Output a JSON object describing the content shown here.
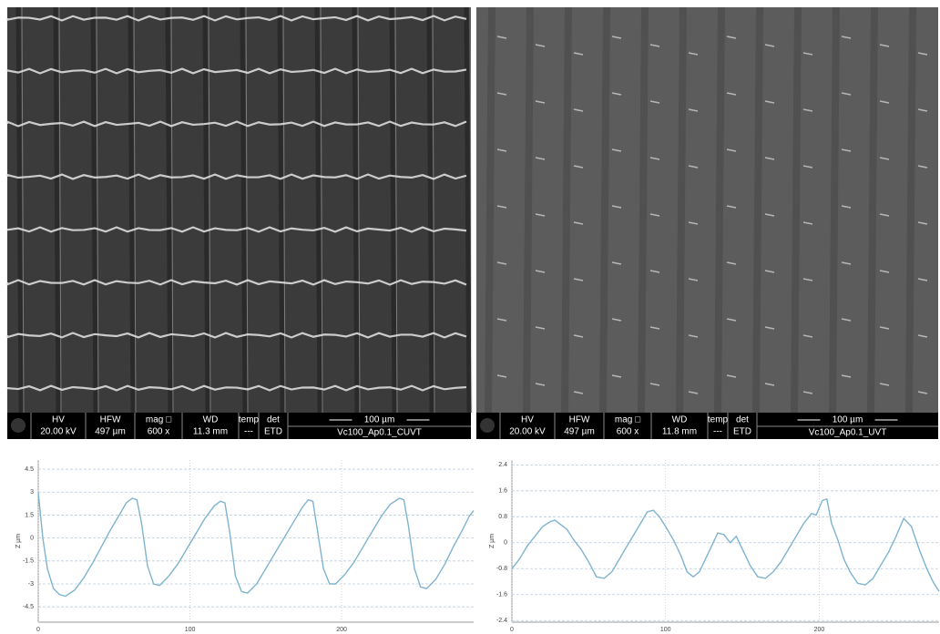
{
  "sem_panels": [
    {
      "headers": [
        "HV",
        "HFW",
        "mag □",
        "WD",
        "temp",
        "det"
      ],
      "values": [
        "20.00 kV",
        "497 µm",
        "600 x",
        "11.3 mm",
        "---",
        "ETD"
      ],
      "scale": "100 µm",
      "name": "Vc100_Ap0.1_CUVT"
    },
    {
      "headers": [
        "HV",
        "HFW",
        "mag □",
        "WD",
        "temp",
        "det"
      ],
      "values": [
        "20.00 kV",
        "497 µm",
        "600 x",
        "11.8 mm",
        "---",
        "ETD"
      ],
      "scale": "100 µm",
      "name": "Vc100_Ap0.1_UVT"
    }
  ],
  "chart_data": [
    {
      "type": "line",
      "y_label": "Z µm",
      "color": "#7fb3d0",
      "grid": true,
      "xlim": [
        0,
        287
      ],
      "xticks": [
        0,
        100,
        200
      ],
      "ylim": [
        -5.5,
        5.1
      ],
      "yticks": [
        4.5,
        3,
        1.5,
        0,
        -1.5,
        -3,
        -4.5
      ],
      "x": [
        0,
        3,
        6,
        10,
        14,
        18,
        24,
        30,
        36,
        42,
        48,
        54,
        58,
        62,
        65,
        68,
        72,
        76,
        80,
        86,
        92,
        98,
        104,
        110,
        116,
        120,
        123,
        126,
        130,
        134,
        138,
        144,
        150,
        156,
        162,
        168,
        174,
        178,
        181,
        184,
        188,
        192,
        196,
        202,
        208,
        214,
        220,
        226,
        232,
        238,
        241,
        244,
        248,
        252,
        256,
        262,
        268,
        274,
        280,
        284,
        287
      ],
      "values": [
        3,
        0,
        -2,
        -3.3,
        -3.7,
        -3.8,
        -3.4,
        -2.6,
        -1.6,
        -0.5,
        0.6,
        1.6,
        2.3,
        2.6,
        2.5,
        1,
        -1.8,
        -3,
        -3.1,
        -2.5,
        -1.7,
        -0.7,
        0.3,
        1.3,
        2.1,
        2.4,
        2.3,
        0.5,
        -2.5,
        -3.5,
        -3.6,
        -3,
        -2,
        -1,
        0,
        1,
        2,
        2.5,
        2.4,
        0.5,
        -2,
        -3,
        -3,
        -2.4,
        -1.6,
        -0.6,
        0.4,
        1.4,
        2.2,
        2.6,
        2.5,
        0.8,
        -2,
        -3.2,
        -3.3,
        -2.7,
        -1.7,
        -0.5,
        0.6,
        1.4,
        1.8
      ]
    },
    {
      "type": "line",
      "y_label": "Z µm",
      "color": "#7fb3d0",
      "grid": true,
      "xlim": [
        0,
        278
      ],
      "xticks": [
        0,
        100,
        200
      ],
      "ylim": [
        -2.45,
        2.55
      ],
      "yticks": [
        2.4,
        1.6,
        0.8,
        0,
        -0.8,
        -1.6,
        -2.4
      ],
      "x": [
        0,
        5,
        10,
        15,
        20,
        25,
        28,
        32,
        36,
        40,
        45,
        50,
        55,
        60,
        65,
        70,
        75,
        80,
        85,
        88,
        92,
        96,
        100,
        105,
        110,
        114,
        118,
        122,
        126,
        130,
        134,
        138,
        142,
        146,
        150,
        155,
        160,
        165,
        170,
        175,
        180,
        185,
        190,
        195,
        198,
        202,
        205,
        208,
        212,
        216,
        220,
        225,
        230,
        235,
        240,
        245,
        250,
        255,
        260,
        265,
        270,
        274,
        278
      ],
      "values": [
        -0.8,
        -0.5,
        -0.1,
        0.2,
        0.5,
        0.65,
        0.7,
        0.55,
        0.4,
        0.1,
        -0.2,
        -0.6,
        -1.05,
        -1.1,
        -0.9,
        -0.5,
        -0.1,
        0.3,
        0.7,
        0.95,
        1.0,
        0.8,
        0.5,
        0.1,
        -0.4,
        -0.9,
        -1.05,
        -0.9,
        -0.5,
        -0.1,
        0.3,
        0.25,
        0.0,
        0.2,
        -0.2,
        -0.7,
        -1.05,
        -1.1,
        -0.9,
        -0.6,
        -0.2,
        0.2,
        0.6,
        0.9,
        0.85,
        1.3,
        1.35,
        0.6,
        0.1,
        -0.5,
        -0.9,
        -1.25,
        -1.3,
        -1.1,
        -0.7,
        -0.3,
        0.2,
        0.75,
        0.5,
        -0.2,
        -0.8,
        -1.2,
        -1.5
      ]
    }
  ]
}
